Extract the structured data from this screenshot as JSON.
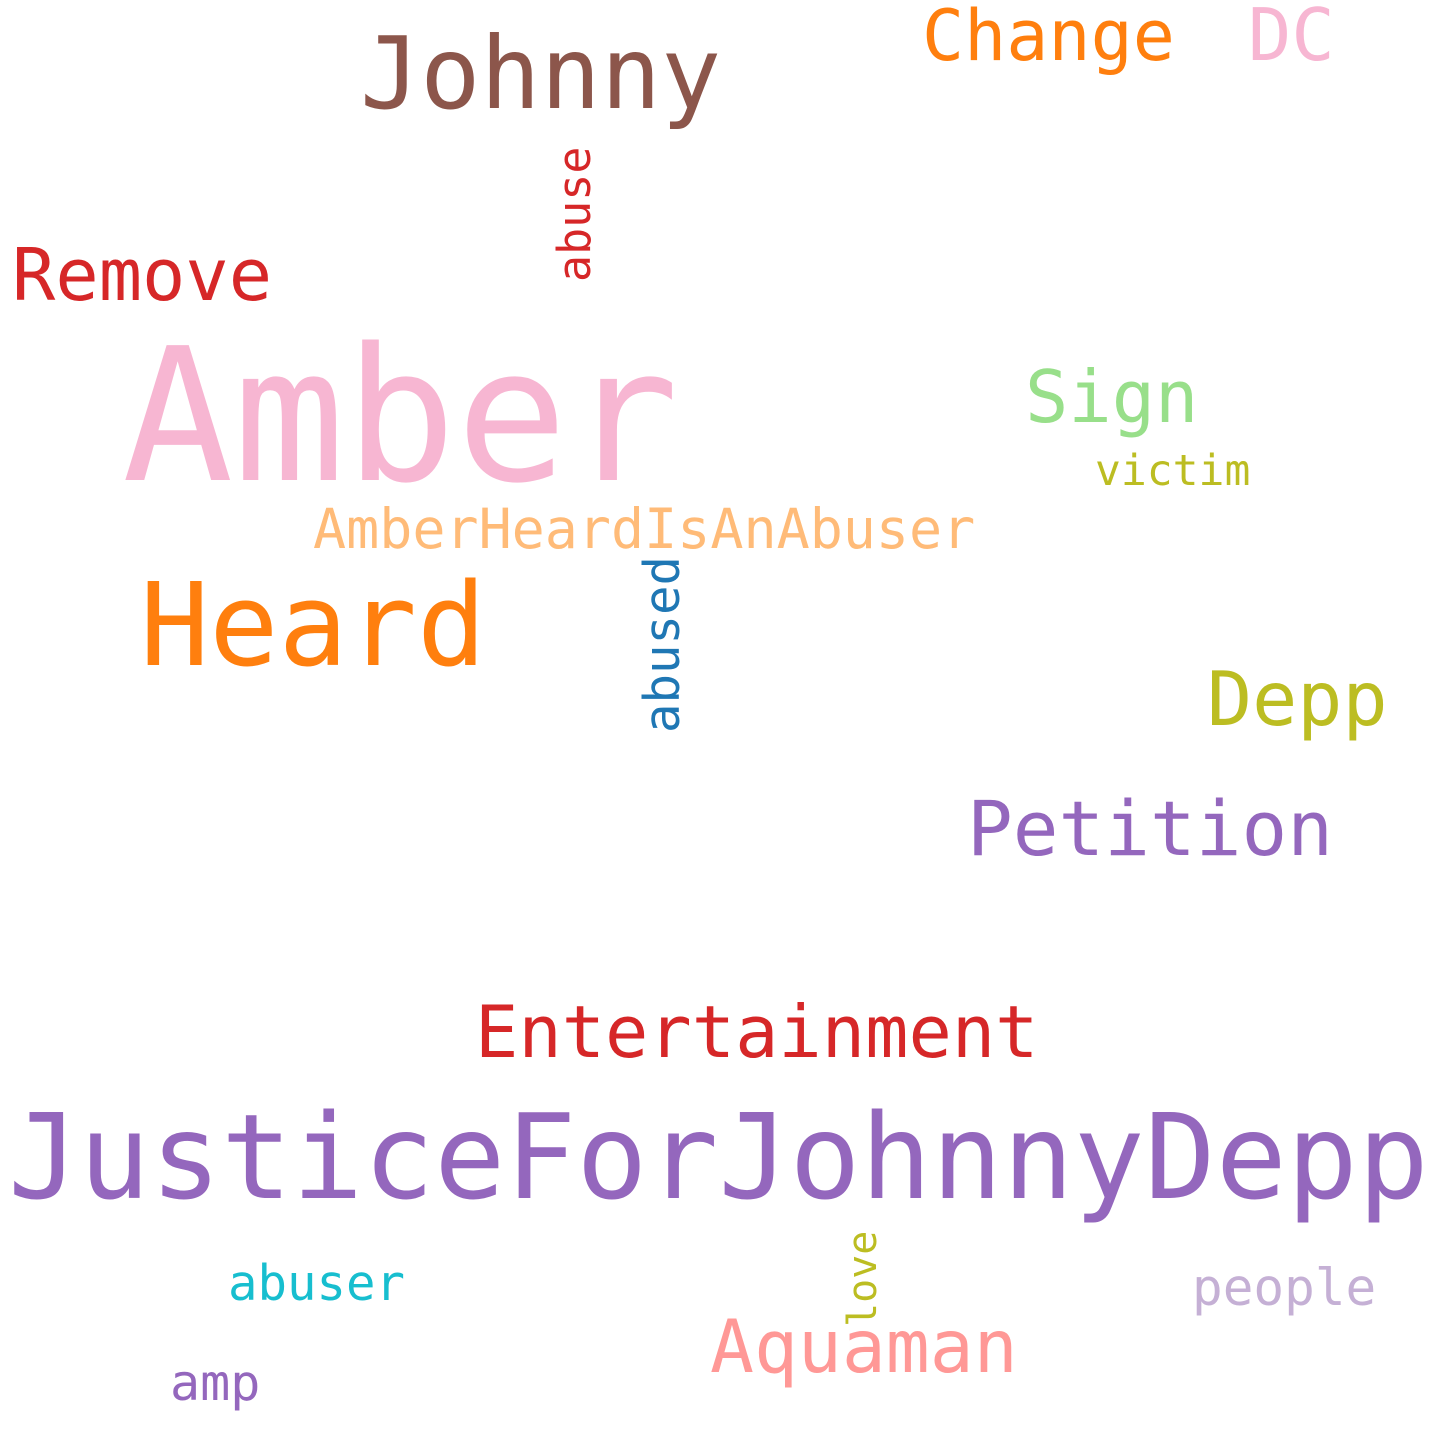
{
  "words": [
    "Johnny",
    "Change",
    "DC",
    "abuse",
    "Remove",
    "Amber",
    "Sign",
    "victim",
    "AmberHeardIsAnAbuser",
    "Heard",
    "abused",
    "Depp",
    "Petition",
    "Entertainment",
    "JusticeForJohnnyDepp",
    "abuser",
    "love",
    "people",
    "Aquaman",
    "amp"
  ]
}
